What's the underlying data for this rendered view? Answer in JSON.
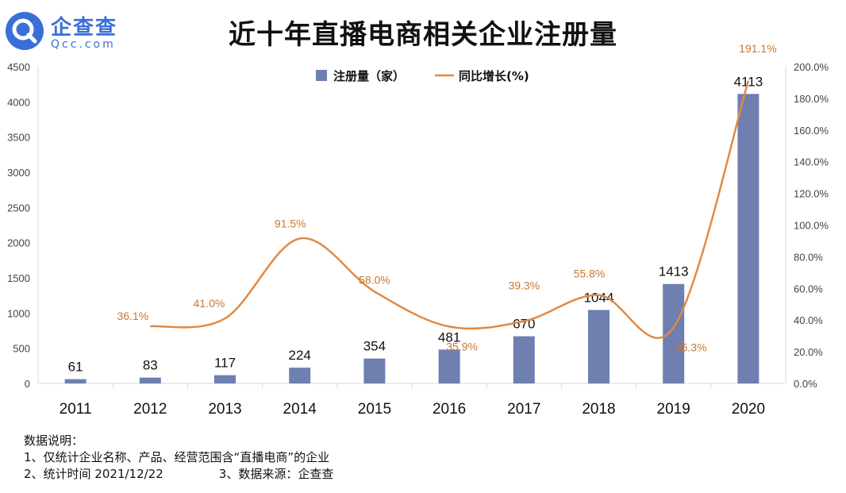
{
  "logo": {
    "name": "企查查",
    "sub": "Qcc.com"
  },
  "chart_data": {
    "type": "bar",
    "title": "近十年直播电商相关企业注册量",
    "categories": [
      "2011",
      "2012",
      "2013",
      "2014",
      "2015",
      "2016",
      "2017",
      "2018",
      "2019",
      "2020"
    ],
    "series": [
      {
        "name": "注册量（家）",
        "type": "bar",
        "axis": "left",
        "values": [
          61,
          83,
          117,
          224,
          354,
          481,
          670,
          1044,
          1413,
          4113
        ],
        "labels": [
          "61",
          "83",
          "117",
          "224",
          "354",
          "481",
          "670",
          "1044",
          "1413",
          "4113"
        ]
      },
      {
        "name": "同比增长(%)",
        "type": "line",
        "axis": "right",
        "values": [
          null,
          36.1,
          41.0,
          91.5,
          58.0,
          35.9,
          39.3,
          55.8,
          35.3,
          191.1
        ],
        "labels": [
          "",
          "36.1%",
          "41.0%",
          "91.5%",
          "58.0%",
          "35.9%",
          "39.3%",
          "55.8%",
          "35.3%",
          "191.1%"
        ]
      }
    ],
    "y_left": {
      "min": 0,
      "max": 4500,
      "step": 500,
      "ticks": [
        "0",
        "500",
        "1000",
        "1500",
        "2000",
        "2500",
        "3000",
        "3500",
        "4000",
        "4500"
      ]
    },
    "y_right": {
      "min": 0,
      "max": 200,
      "step": 20,
      "ticks": [
        "0.0%",
        "20.0%",
        "40.0%",
        "60.0%",
        "80.0%",
        "100.0%",
        "120.0%",
        "140.0%",
        "160.0%",
        "180.0%",
        "200.0%"
      ]
    },
    "legend": "top-center",
    "grid": false
  },
  "colors": {
    "bar": "#6e7fb0",
    "line": "#e08a45",
    "line_label": "#c9772f",
    "axis": "#d9d9d9",
    "text": "#111111",
    "tick": "#444444"
  },
  "notes": {
    "heading": "数据说明：",
    "line1": "1、仅统计企业名称、产品、经营范围含“直播电商”的企业",
    "line2a": "2、统计时间 2021/12/22",
    "line2b": "3、数据来源：企查查"
  }
}
